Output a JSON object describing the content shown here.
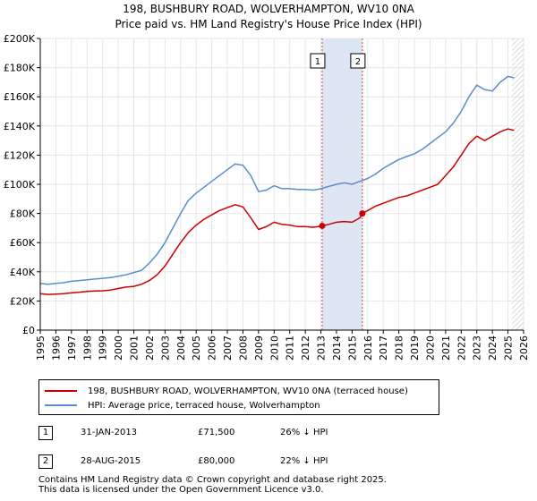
{
  "title_line1": "198, BUSHBURY ROAD, WOLVERHAMPTON, WV10 0NA",
  "title_line2": "Price paid vs. HM Land Registry's House Price Index (HPI)",
  "legend": {
    "property_label": "198, BUSHBURY ROAD, WOLVERHAMPTON, WV10 0NA (terraced house)",
    "hpi_label": "HPI: Average price, terraced house, Wolverhampton"
  },
  "sales": [
    {
      "badge": "1",
      "date": "31-JAN-2013",
      "price": "£71,500",
      "hpi_delta": "26% ↓ HPI"
    },
    {
      "badge": "2",
      "date": "28-AUG-2015",
      "price": "£80,000",
      "hpi_delta": "22% ↓ HPI"
    }
  ],
  "footer_line1": "Contains HM Land Registry data © Crown copyright and database right 2025.",
  "footer_line2": "This data is licensed under the Open Government Licence v3.0.",
  "colors": {
    "property": "#cc0000",
    "hpi": "#5b8ccf",
    "highlight": "#dde6f5",
    "grid": "#e6e6e6",
    "marker_line": "#cc0000"
  },
  "chart_data": {
    "type": "line",
    "title": "Price paid vs. HM Land Registry's House Price Index (HPI)",
    "xlabel": "",
    "ylabel": "",
    "xlim": [
      1995,
      2026
    ],
    "ylim": [
      0,
      200000
    ],
    "x_ticks": [
      1995,
      1996,
      1997,
      1998,
      1999,
      2000,
      2001,
      2002,
      2003,
      2004,
      2005,
      2006,
      2007,
      2008,
      2009,
      2010,
      2011,
      2012,
      2013,
      2014,
      2015,
      2016,
      2017,
      2018,
      2019,
      2020,
      2021,
      2022,
      2023,
      2024,
      2025,
      2026
    ],
    "y_ticks": [
      0,
      20000,
      40000,
      60000,
      80000,
      100000,
      120000,
      140000,
      160000,
      180000,
      200000
    ],
    "y_tick_labels": [
      "£0",
      "£20K",
      "£40K",
      "£60K",
      "£80K",
      "£100K",
      "£120K",
      "£140K",
      "£160K",
      "£180K",
      "£200K"
    ],
    "series": [
      {
        "name": "198, BUSHBURY ROAD, WOLVERHAMPTON, WV10 0NA (terraced house)",
        "x": [
          1995,
          1995.5,
          1996,
          1996.5,
          1997,
          1997.5,
          1998,
          1998.5,
          1999,
          1999.5,
          2000,
          2000.5,
          2001,
          2001.5,
          2002,
          2002.5,
          2003,
          2003.5,
          2004,
          2004.5,
          2005,
          2005.5,
          2006,
          2006.5,
          2007,
          2007.5,
          2008,
          2008.5,
          2009,
          2009.5,
          2010,
          2010.5,
          2011,
          2011.5,
          2012,
          2012.5,
          2013.08,
          2013.5,
          2014,
          2014.5,
          2015,
          2015.5,
          2015.66,
          2016,
          2016.5,
          2017,
          2017.5,
          2018,
          2018.5,
          2019,
          2019.5,
          2020,
          2020.5,
          2021,
          2021.5,
          2022,
          2022.5,
          2023,
          2023.5,
          2024,
          2024.5,
          2025,
          2025.4
        ],
        "values": [
          25000,
          24500,
          24700,
          25000,
          25500,
          26000,
          26500,
          26800,
          27000,
          27500,
          28500,
          29500,
          30000,
          31500,
          34000,
          38000,
          44000,
          52000,
          60000,
          67000,
          72000,
          76000,
          79000,
          82000,
          84000,
          86000,
          84500,
          77000,
          69000,
          71000,
          74000,
          72500,
          72000,
          71000,
          71000,
          70500,
          71500,
          72500,
          74000,
          74500,
          74000,
          77000,
          80000,
          82000,
          85000,
          87000,
          89000,
          91000,
          92000,
          94000,
          96000,
          98000,
          100000,
          106000,
          112000,
          120000,
          128000,
          133000,
          130000,
          133000,
          136000,
          138000,
          137000
        ]
      },
      {
        "name": "HPI: Average price, terraced house, Wolverhampton",
        "x": [
          1995,
          1995.5,
          1996,
          1996.5,
          1997,
          1997.5,
          1998,
          1998.5,
          1999,
          1999.5,
          2000,
          2000.5,
          2001,
          2001.5,
          2002,
          2002.5,
          2003,
          2003.5,
          2004,
          2004.5,
          2005,
          2005.5,
          2006,
          2006.5,
          2007,
          2007.5,
          2008,
          2008.5,
          2009,
          2009.5,
          2010,
          2010.5,
          2011,
          2011.5,
          2012,
          2012.5,
          2013,
          2013.5,
          2014,
          2014.5,
          2015,
          2015.5,
          2016,
          2016.5,
          2017,
          2017.5,
          2018,
          2018.5,
          2019,
          2019.5,
          2020,
          2020.5,
          2021,
          2021.5,
          2022,
          2022.5,
          2023,
          2023.5,
          2024,
          2024.5,
          2025,
          2025.4
        ],
        "values": [
          32000,
          31500,
          32000,
          32500,
          33500,
          34000,
          34500,
          35000,
          35500,
          36000,
          37000,
          38000,
          39500,
          41000,
          46000,
          52000,
          60000,
          70000,
          80000,
          89000,
          94000,
          98000,
          102000,
          106000,
          110000,
          114000,
          113000,
          106000,
          95000,
          96000,
          99000,
          97000,
          97000,
          96500,
          96500,
          96000,
          97000,
          98500,
          100000,
          101000,
          100000,
          102000,
          104000,
          107000,
          111000,
          114000,
          117000,
          119000,
          121000,
          124000,
          128000,
          132000,
          136000,
          142000,
          150000,
          160000,
          168000,
          165000,
          164000,
          170000,
          174000,
          173000
        ]
      }
    ],
    "sales": [
      {
        "label": "1",
        "x": 2013.08,
        "price": 71500
      },
      {
        "label": "2",
        "x": 2015.66,
        "price": 80000
      }
    ],
    "highlight_range": [
      2013.08,
      2015.66
    ],
    "forecast_from": 2025.25,
    "legend_position": "bottom"
  }
}
